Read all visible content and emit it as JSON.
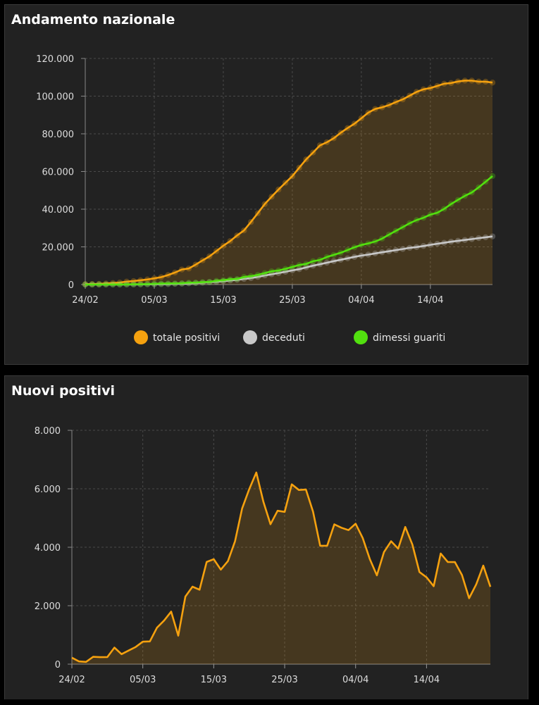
{
  "colors": {
    "totale_positivi": "#f5a10f",
    "deceduti": "#c8c8c8",
    "dimessi_guariti": "#52e00f",
    "panel_bg": "#222222",
    "grid": "#4a4a4a"
  },
  "chart_data": [
    {
      "type": "area",
      "title": "Andamento nazionale",
      "x": [
        "24/02",
        "25/02",
        "26/02",
        "27/02",
        "28/02",
        "29/02",
        "01/03",
        "02/03",
        "03/03",
        "04/03",
        "05/03",
        "06/03",
        "07/03",
        "08/03",
        "09/03",
        "10/03",
        "11/03",
        "12/03",
        "13/03",
        "14/03",
        "15/03",
        "16/03",
        "17/03",
        "18/03",
        "19/03",
        "20/03",
        "21/03",
        "22/03",
        "23/03",
        "24/03",
        "25/03",
        "26/03",
        "27/03",
        "28/03",
        "29/03",
        "30/03",
        "31/03",
        "01/04",
        "02/04",
        "03/04",
        "04/04",
        "05/04",
        "06/04",
        "07/04",
        "08/04",
        "09/04",
        "10/04",
        "11/04",
        "12/04",
        "13/04",
        "14/04",
        "15/04",
        "16/04",
        "17/04",
        "18/04",
        "19/04",
        "20/04",
        "21/04",
        "22/04",
        "23/04"
      ],
      "xticks": [
        "24/02",
        "05/03",
        "15/03",
        "25/03",
        "04/04",
        "14/04"
      ],
      "yticks": [
        "0",
        "20.000",
        "40.000",
        "60.000",
        "80.000",
        "100.000",
        "120.000"
      ],
      "ylim": [
        0,
        120000
      ],
      "legend": [
        "totale positivi",
        "deceduti",
        "dimessi guariti"
      ],
      "series": [
        {
          "name": "totale positivi",
          "values": [
            221,
            311,
            385,
            588,
            821,
            1049,
            1577,
            1835,
            2263,
            2706,
            3296,
            3916,
            5061,
            6387,
            7985,
            8514,
            10590,
            12839,
            14955,
            17750,
            20603,
            23073,
            26062,
            28710,
            33190,
            37860,
            42681,
            46638,
            50418,
            54030,
            57521,
            62013,
            66414,
            70065,
            73880,
            75528,
            77635,
            80572,
            83049,
            85388,
            88274,
            91246,
            93187,
            94067,
            95262,
            96877,
            98273,
            100269,
            102253,
            103616,
            104291,
            105418,
            106607,
            106962,
            107771,
            108257,
            108237,
            107709,
            107699,
            107200
          ]
        },
        {
          "name": "deceduti",
          "values": [
            7,
            10,
            12,
            17,
            21,
            29,
            34,
            52,
            79,
            107,
            148,
            197,
            233,
            366,
            463,
            631,
            827,
            1016,
            1266,
            1441,
            1809,
            2158,
            2503,
            2978,
            3405,
            4032,
            4825,
            5476,
            6077,
            6820,
            7503,
            8165,
            9134,
            10023,
            10779,
            11591,
            12428,
            13155,
            13915,
            14681,
            15362,
            15887,
            16523,
            17127,
            17669,
            18279,
            18849,
            19468,
            19899,
            20465,
            21067,
            21645,
            22170,
            22745,
            23227,
            23660,
            24114,
            24648,
            25085,
            25549
          ]
        },
        {
          "name": "dimessi guariti",
          "values": [
            1,
            1,
            3,
            45,
            46,
            50,
            83,
            149,
            160,
            276,
            414,
            523,
            589,
            622,
            724,
            1004,
            1045,
            1258,
            1439,
            1966,
            2335,
            2749,
            2941,
            4025,
            4440,
            5129,
            6072,
            7024,
            7432,
            8326,
            9362,
            10361,
            10950,
            12384,
            13030,
            14620,
            15729,
            16847,
            18278,
            19758,
            20996,
            21815,
            22837,
            24392,
            26491,
            28470,
            30455,
            32534,
            34211,
            35435,
            37130,
            38092,
            40164,
            42727,
            44927,
            47055,
            48877,
            51600,
            54543,
            57576
          ]
        }
      ]
    },
    {
      "type": "area",
      "title": "Nuovi positivi",
      "x": [
        "24/02",
        "25/02",
        "26/02",
        "27/02",
        "28/02",
        "29/02",
        "01/03",
        "02/03",
        "03/03",
        "04/03",
        "05/03",
        "06/03",
        "07/03",
        "08/03",
        "09/03",
        "10/03",
        "11/03",
        "12/03",
        "13/03",
        "14/03",
        "15/03",
        "16/03",
        "17/03",
        "18/03",
        "19/03",
        "20/03",
        "21/03",
        "22/03",
        "23/03",
        "24/03",
        "25/03",
        "26/03",
        "27/03",
        "28/03",
        "29/03",
        "30/03",
        "31/03",
        "01/04",
        "02/04",
        "03/04",
        "04/04",
        "05/04",
        "06/04",
        "07/04",
        "08/04",
        "09/04",
        "10/04",
        "11/04",
        "12/04",
        "13/04",
        "14/04",
        "15/04",
        "16/04",
        "17/04",
        "18/04",
        "19/04",
        "20/04",
        "21/04",
        "22/04",
        "23/04"
      ],
      "xticks": [
        "24/02",
        "05/03",
        "15/03",
        "25/03",
        "04/04",
        "14/04"
      ],
      "yticks": [
        "0",
        "2.000",
        "4.000",
        "6.000",
        "8.000"
      ],
      "ylim": [
        0,
        8000
      ],
      "series": [
        {
          "name": "nuovi positivi",
          "values": [
            221,
            93,
            78,
            250,
            238,
            240,
            566,
            342,
            466,
            587,
            769,
            778,
            1247,
            1492,
            1797,
            977,
            2313,
            2651,
            2547,
            3497,
            3590,
            3233,
            3526,
            4207,
            5322,
            5986,
            6557,
            5560,
            4789,
            5249,
            5210,
            6153,
            5959,
            5974,
            5217,
            4050,
            4053,
            4782,
            4668,
            4585,
            4805,
            4316,
            3599,
            3039,
            3836,
            4204,
            3951,
            4694,
            4092,
            3153,
            2972,
            2667,
            3786,
            3493,
            3491,
            3047,
            2256,
            2729,
            3370,
            2646
          ]
        }
      ]
    }
  ]
}
